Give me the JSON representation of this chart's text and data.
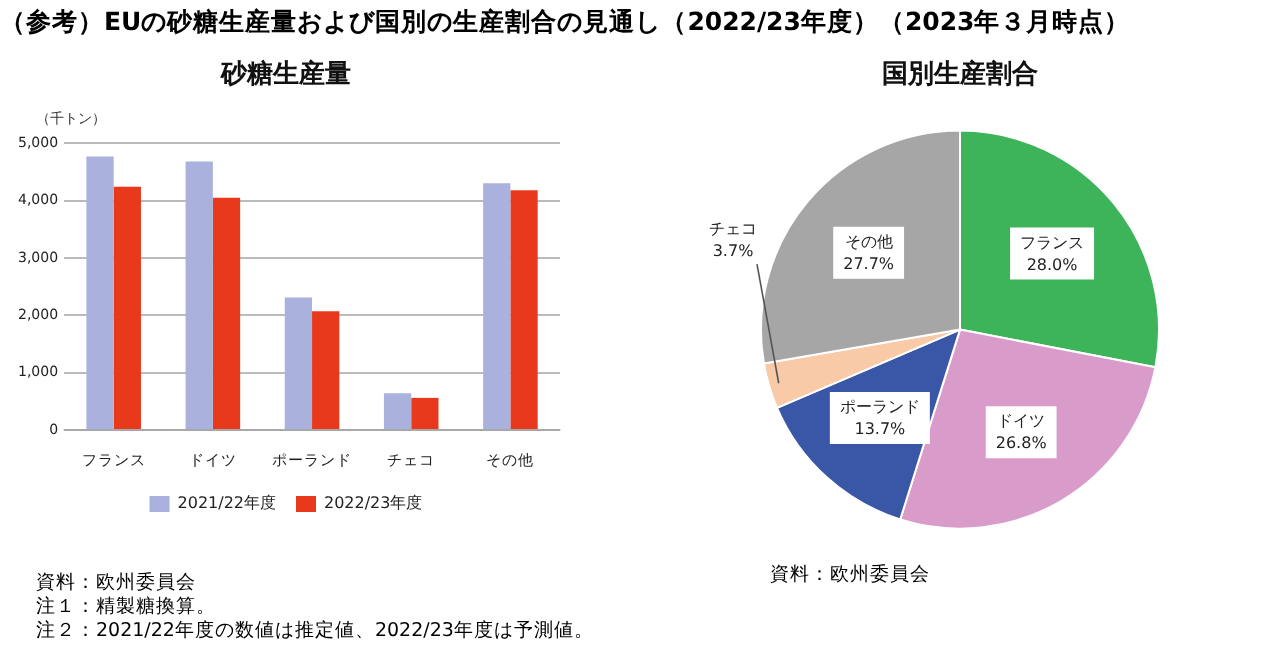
{
  "chart_data": [
    {
      "type": "bar",
      "title": "（参考）EUの砂糖生産量および国別の生産割合の見通し（2022/23年度）（2023年３月時点）",
      "subtitle": "砂糖生産量",
      "ylabel": "（千トン）",
      "categories": [
        "フランス",
        "ドイツ",
        "ポーランド",
        "チェコ",
        "その他"
      ],
      "series": [
        {
          "name": "2021/22年度",
          "color": "#a9b1dc",
          "values": [
            4770,
            4680,
            2310,
            640,
            4300
          ]
        },
        {
          "name": "2022/23年度",
          "color": "#e8391d",
          "values": [
            4240,
            4050,
            2070,
            560,
            4180
          ]
        }
      ],
      "ylim": [
        0,
        5000
      ],
      "yticks": [
        0,
        {
          "value": 1000,
          "label": "1,000"
        },
        {
          "value": 2000,
          "label": "2,000"
        },
        {
          "value": 3000,
          "label": "3,000"
        },
        {
          "value": 4000,
          "label": "4,000"
        },
        {
          "value": 5000,
          "label": "5,000"
        }
      ],
      "grid": "y",
      "legend": "bottom",
      "annotations": [
        "資料：欧州委員会",
        "注１：精製糖換算。",
        "注２：2021/22年度の数値は推定値、2022/23年度は予測値。"
      ]
    },
    {
      "type": "pie",
      "title": "国別生産割合",
      "categories": [
        "フランス",
        "ドイツ",
        "ポーランド",
        "チェコ",
        "その他"
      ],
      "values": [
        28.0,
        26.8,
        13.7,
        3.7,
        27.7
      ],
      "colors": [
        "#3db35a",
        "#d99bc9",
        "#3a56a6",
        "#f9caa8",
        "#a6a6a6"
      ],
      "value_labels": [
        "28.0%",
        "26.8%",
        "13.7%",
        "3.7%",
        "27.7%"
      ],
      "annotations": [
        "資料：欧州委員会"
      ]
    }
  ]
}
